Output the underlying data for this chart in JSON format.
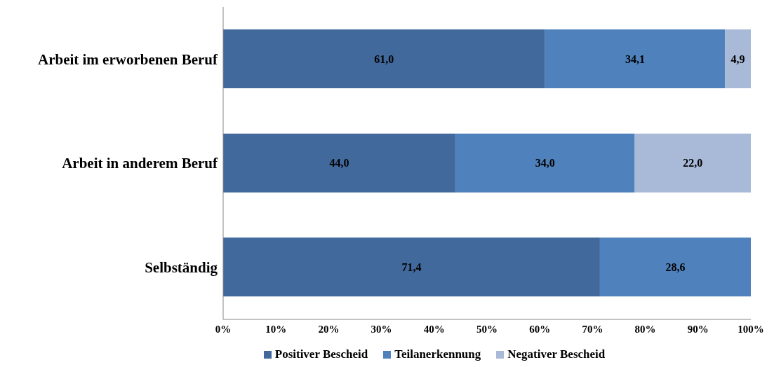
{
  "chart_data": {
    "type": "bar",
    "orientation": "horizontal",
    "stacked": true,
    "categories": [
      "Arbeit im erworbenen Beruf",
      "Arbeit in anderem Beruf",
      "Selbständig"
    ],
    "series": [
      {
        "name": "Positiver Bescheid",
        "color": "#41699c",
        "values": [
          61.0,
          44.0,
          71.4
        ],
        "value_labels": [
          "61,0",
          "44,0",
          "71,4"
        ]
      },
      {
        "name": "Teilanerkennung",
        "color": "#4f81bd",
        "values": [
          34.1,
          34.0,
          28.6
        ],
        "value_labels": [
          "34,1",
          "34,0",
          "28,6"
        ]
      },
      {
        "name": "Negativer Bescheid",
        "color": "#a9b9d8",
        "values": [
          4.9,
          22.0,
          null
        ],
        "value_labels": [
          "4,9",
          "22,0",
          null
        ]
      }
    ],
    "xlim": [
      0,
      100
    ],
    "xticks": [
      {
        "value": 0,
        "label": "0%"
      },
      {
        "value": 10,
        "label": "10%"
      },
      {
        "value": 20,
        "label": "20%"
      },
      {
        "value": 30,
        "label": "30%"
      },
      {
        "value": 40,
        "label": "40%"
      },
      {
        "value": 50,
        "label": "50%"
      },
      {
        "value": 60,
        "label": "60%"
      },
      {
        "value": 70,
        "label": "70%"
      },
      {
        "value": 80,
        "label": "80%"
      },
      {
        "value": 90,
        "label": "90%"
      },
      {
        "value": 100,
        "label": "100%"
      }
    ],
    "grid": false,
    "legend": "bottom"
  }
}
